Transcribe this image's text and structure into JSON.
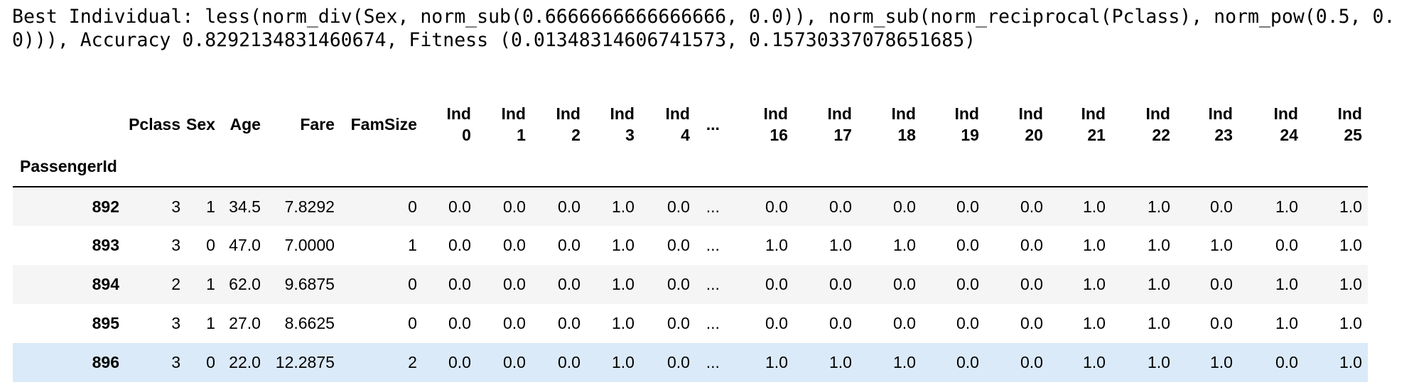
{
  "output": {
    "text": "Best Individual: less(norm_div(Sex, norm_sub(0.6666666666666666, 0.0)), norm_sub(norm_reciprocal(Pclass), norm_pow(0.5, 0.0))), Accuracy 0.8292134831460674, Fitness (0.01348314606741573, 0.15730337078651685)"
  },
  "table": {
    "index_name": "PassengerId",
    "headers": {
      "pclass": "Pclass",
      "sex": "Sex",
      "age": "Age",
      "fare": "Fare",
      "famsize": "FamSize",
      "ind0": [
        "Ind",
        "0"
      ],
      "ind1": [
        "Ind",
        "1"
      ],
      "ind2": [
        "Ind",
        "2"
      ],
      "ind3": [
        "Ind",
        "3"
      ],
      "ind4": [
        "Ind",
        "4"
      ],
      "ellipsis": "...",
      "ind16": [
        "Ind",
        "16"
      ],
      "ind17": [
        "Ind",
        "17"
      ],
      "ind18": [
        "Ind",
        "18"
      ],
      "ind19": [
        "Ind",
        "19"
      ],
      "ind20": [
        "Ind",
        "20"
      ],
      "ind21": [
        "Ind",
        "21"
      ],
      "ind22": [
        "Ind",
        "22"
      ],
      "ind23": [
        "Ind",
        "23"
      ],
      "ind24": [
        "Ind",
        "24"
      ],
      "ind25": [
        "Ind",
        "25"
      ]
    },
    "rows": [
      {
        "id": "892",
        "cells": [
          "3",
          "1",
          "34.5",
          "7.8292",
          "0",
          "0.0",
          "0.0",
          "0.0",
          "1.0",
          "0.0",
          "...",
          "0.0",
          "0.0",
          "0.0",
          "0.0",
          "0.0",
          "1.0",
          "1.0",
          "0.0",
          "1.0",
          "1.0"
        ]
      },
      {
        "id": "893",
        "cells": [
          "3",
          "0",
          "47.0",
          "7.0000",
          "1",
          "0.0",
          "0.0",
          "0.0",
          "1.0",
          "0.0",
          "...",
          "1.0",
          "1.0",
          "1.0",
          "0.0",
          "0.0",
          "1.0",
          "1.0",
          "1.0",
          "0.0",
          "1.0"
        ]
      },
      {
        "id": "894",
        "cells": [
          "2",
          "1",
          "62.0",
          "9.6875",
          "0",
          "0.0",
          "0.0",
          "0.0",
          "1.0",
          "0.0",
          "...",
          "0.0",
          "0.0",
          "0.0",
          "0.0",
          "0.0",
          "1.0",
          "1.0",
          "0.0",
          "1.0",
          "1.0"
        ]
      },
      {
        "id": "895",
        "cells": [
          "3",
          "1",
          "27.0",
          "8.6625",
          "0",
          "0.0",
          "0.0",
          "0.0",
          "1.0",
          "0.0",
          "...",
          "0.0",
          "0.0",
          "0.0",
          "0.0",
          "0.0",
          "1.0",
          "1.0",
          "0.0",
          "1.0",
          "1.0"
        ]
      },
      {
        "id": "896",
        "cells": [
          "3",
          "0",
          "22.0",
          "12.2875",
          "2",
          "0.0",
          "0.0",
          "0.0",
          "1.0",
          "0.0",
          "...",
          "1.0",
          "1.0",
          "1.0",
          "0.0",
          "0.0",
          "1.0",
          "1.0",
          "1.0",
          "0.0",
          "1.0"
        ]
      }
    ]
  },
  "colors": {
    "row_stripe": "#f5f5f5",
    "row_hover": "#dbeaf8",
    "header_rule": "#000000"
  }
}
